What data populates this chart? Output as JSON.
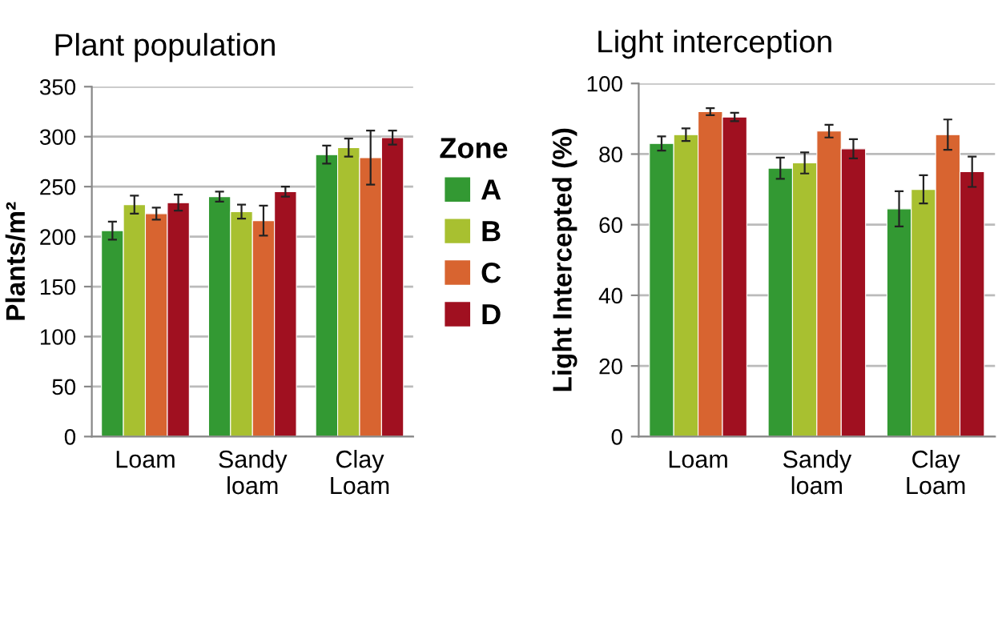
{
  "chart_data": [
    {
      "type": "bar",
      "title": "Plant population",
      "ylabel": "Plants/m²",
      "legend_title": "Zone",
      "legend": "right",
      "categories": [
        "Loam",
        "Sandy\nloam",
        "Clay\nLoam"
      ],
      "ylim": [
        0,
        350
      ],
      "yticks": [
        0,
        50,
        100,
        150,
        200,
        250,
        300,
        350
      ],
      "grid": "y",
      "series": [
        {
          "name": "A",
          "color": "#339933",
          "values": [
            206,
            240,
            282
          ],
          "errors": [
            9,
            5,
            9
          ]
        },
        {
          "name": "B",
          "color": "#a8c030",
          "values": [
            232,
            225,
            289
          ],
          "errors": [
            9,
            7,
            9
          ]
        },
        {
          "name": "C",
          "color": "#d86430",
          "values": [
            223,
            216,
            279
          ],
          "errors": [
            6,
            15,
            27
          ]
        },
        {
          "name": "D",
          "color": "#a01020",
          "values": [
            234,
            245,
            299
          ],
          "errors": [
            8,
            5,
            7
          ]
        }
      ]
    },
    {
      "type": "bar",
      "title": "Light interception",
      "ylabel": "Light Intercepted (%)",
      "categories": [
        "Loam",
        "Sandy\nloam",
        "Clay\nLoam"
      ],
      "ylim": [
        0,
        100
      ],
      "yticks": [
        0,
        20,
        40,
        60,
        80,
        100
      ],
      "grid": "y",
      "series": [
        {
          "color": "#339933",
          "values": [
            83,
            76,
            64.5
          ],
          "errors": [
            2,
            3,
            5
          ]
        },
        {
          "color": "#a8c030",
          "values": [
            85.5,
            77.5,
            70
          ],
          "errors": [
            1.8,
            3,
            4
          ]
        },
        {
          "color": "#d86430",
          "values": [
            92,
            86.5,
            85.5
          ],
          "errors": [
            1,
            1.8,
            4.3
          ]
        },
        {
          "color": "#a01020",
          "values": [
            90.5,
            81.5,
            75
          ],
          "errors": [
            1.2,
            2.7,
            4.3
          ]
        }
      ]
    }
  ]
}
